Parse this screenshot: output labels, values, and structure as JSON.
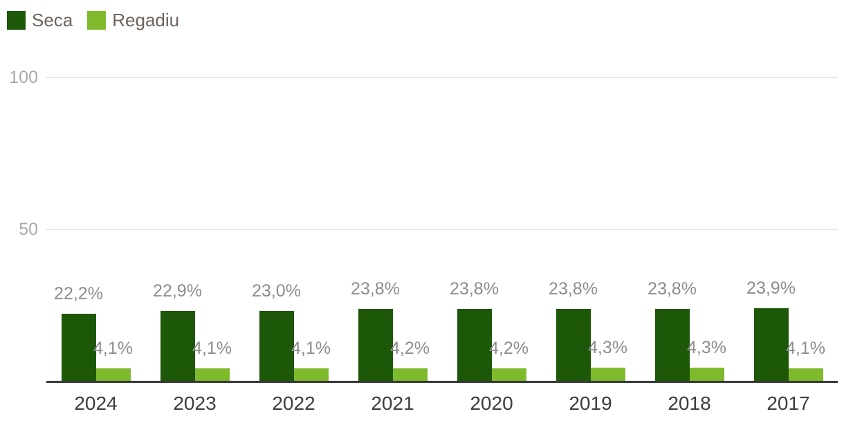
{
  "legend": {
    "items": [
      {
        "label": "Seca",
        "color": "#1d5808"
      },
      {
        "label": "Regadiu",
        "color": "#7fba2d"
      }
    ]
  },
  "chart_data": {
    "type": "bar",
    "title": "",
    "categories": [
      "2024",
      "2023",
      "2022",
      "2021",
      "2020",
      "2019",
      "2018",
      "2017"
    ],
    "series": [
      {
        "name": "Seca",
        "color": "#1d5808",
        "values": [
          22.2,
          22.9,
          23.0,
          23.8,
          23.8,
          23.8,
          23.8,
          23.9
        ],
        "labels": [
          "22,2%",
          "22,9%",
          "23,0%",
          "23,8%",
          "23,8%",
          "23,8%",
          "23,8%",
          "23,9%"
        ]
      },
      {
        "name": "Regadiu",
        "color": "#7fba2d",
        "values": [
          4.1,
          4.1,
          4.1,
          4.2,
          4.2,
          4.3,
          4.3,
          4.1
        ],
        "labels": [
          "4,1%",
          "4,1%",
          "4,1%",
          "4,2%",
          "4,2%",
          "4,3%",
          "4,3%",
          "4,1%"
        ]
      }
    ],
    "y_axis": {
      "min": 0,
      "max": 100,
      "unit": "%",
      "ticks": [
        {
          "value": 50,
          "label": "50"
        },
        {
          "value": 100,
          "label": "100"
        }
      ]
    },
    "grid": true,
    "legend_position": "top-left"
  }
}
